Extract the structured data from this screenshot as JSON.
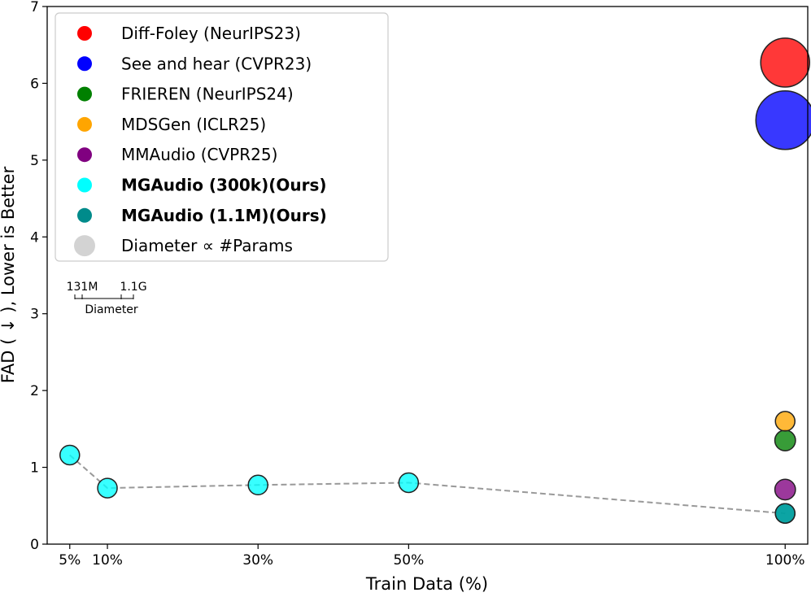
{
  "chart_data": {
    "type": "scatter",
    "title": "",
    "xlabel": "Train Data (%)",
    "ylabel": "FAD ( ↓ ), Lower is Better",
    "xlim": [
      2,
      103
    ],
    "ylim": [
      0,
      7
    ],
    "x_ticks": [
      {
        "value": 5,
        "label": "5%"
      },
      {
        "value": 10,
        "label": "10%"
      },
      {
        "value": 30,
        "label": "30%"
      },
      {
        "value": 50,
        "label": "50%"
      },
      {
        "value": 100,
        "label": "100%"
      }
    ],
    "y_ticks": [
      0,
      1,
      2,
      3,
      4,
      5,
      6,
      7
    ],
    "grid": false,
    "series": [
      {
        "name": "Diff-Foley (NeurIPS23)",
        "color": "#ff0000",
        "bold": false,
        "points": [
          {
            "x": 100,
            "y": 6.27,
            "params_m": 859
          }
        ]
      },
      {
        "name": "See and hear (CVPR23)",
        "color": "#0000ff",
        "bold": false,
        "points": [
          {
            "x": 100,
            "y": 5.52,
            "params_m": 1099
          }
        ]
      },
      {
        "name": "FRIEREN (NeurIPS24)",
        "color": "#008000",
        "bold": false,
        "points": [
          {
            "x": 100,
            "y": 1.35,
            "params_m": 159
          }
        ]
      },
      {
        "name": "MDSGen (ICLR25)",
        "color": "#ffa500",
        "bold": false,
        "points": [
          {
            "x": 100,
            "y": 1.6,
            "params_m": 131
          }
        ]
      },
      {
        "name": "MMAudio (CVPR25)",
        "color": "#800080",
        "bold": false,
        "points": [
          {
            "x": 100,
            "y": 0.71,
            "params_m": 157
          }
        ]
      },
      {
        "name": "MGAudio (300k)(Ours)",
        "color": "#00ffff",
        "bold": true,
        "line": {
          "style": "dashed",
          "color": "#999999"
        },
        "points": [
          {
            "x": 5,
            "y": 1.16,
            "params_m": 131
          },
          {
            "x": 10,
            "y": 0.73,
            "params_m": 131
          },
          {
            "x": 30,
            "y": 0.77,
            "params_m": 131
          },
          {
            "x": 50,
            "y": 0.8,
            "params_m": 131
          },
          {
            "x": 100,
            "y": 0.4,
            "params_m": 131
          }
        ]
      },
      {
        "name": "MGAudio (1.1M)(Ours)",
        "color": "#008b8b",
        "bold": true,
        "points": [
          {
            "x": 100,
            "y": 0.4,
            "params_m": 131
          }
        ]
      }
    ],
    "legend": {
      "position": "upper-left",
      "size_entry": {
        "label": "Diameter ∝ #Params",
        "color": "#d3d3d3"
      }
    },
    "size_scale": {
      "min_label": "131M",
      "max_label": "1.1G",
      "caption": "Diameter"
    }
  }
}
